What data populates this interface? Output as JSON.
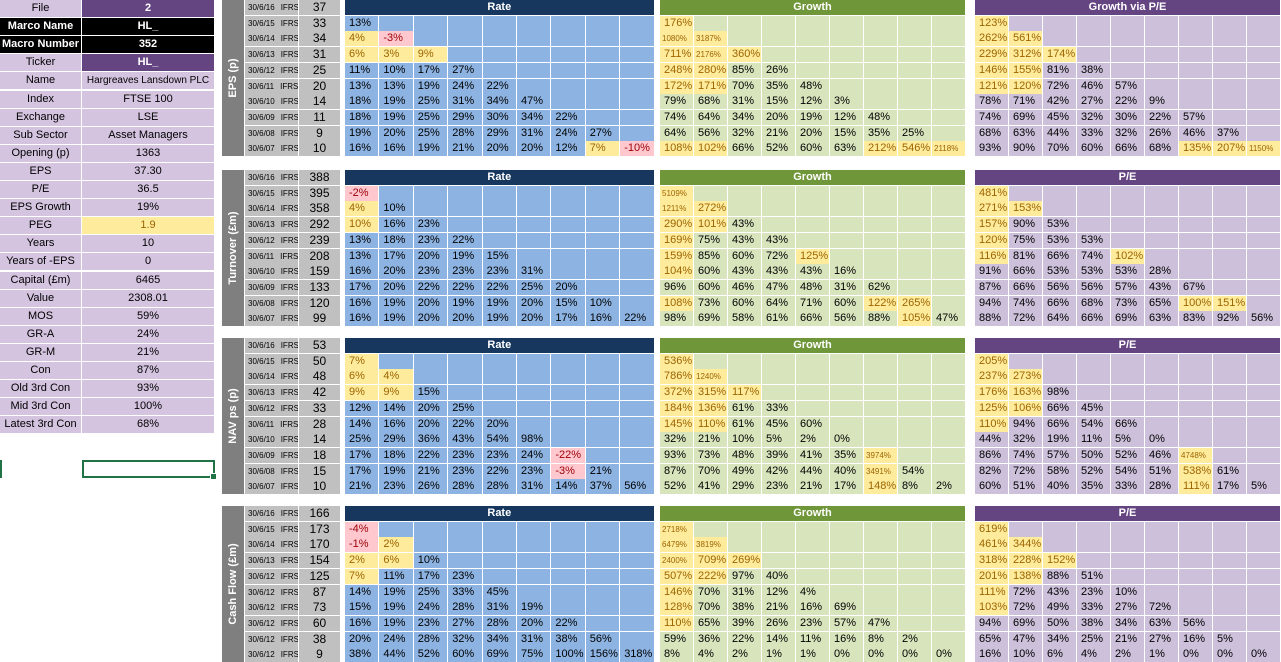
{
  "colors": {
    "rate_header": "#17375e",
    "rate_cell": "#8db3e2",
    "growth_header": "#6f9638",
    "growth_cell": "#d7e4bc",
    "pe_header": "#654482",
    "pe_cell": "#ccc0da",
    "highlight_yellow": "#ffeb9c",
    "highlight_pink": "#ffc7ce"
  },
  "summary": [
    {
      "label": "File",
      "value": "2"
    },
    {
      "label": "Marco Name",
      "value": "HL_"
    },
    {
      "label": "Macro Number",
      "value": "352"
    },
    {
      "label": "Ticker",
      "value": "HL_"
    },
    {
      "label": "Name",
      "value": "Hargreaves Lansdown PLC"
    },
    {
      "label": "Index",
      "value": "FTSE 100"
    },
    {
      "label": "Exchange",
      "value": "LSE"
    },
    {
      "label": "Sub Sector",
      "value": "Asset Managers"
    },
    {
      "label": "Opening (p)",
      "value": "1363"
    },
    {
      "label": "EPS",
      "value": "37.30"
    },
    {
      "label": "P/E",
      "value": "36.5"
    },
    {
      "label": "EPS Growth",
      "value": "19%"
    },
    {
      "label": "PEG",
      "value": "1.9"
    },
    {
      "label": "Years",
      "value": "10"
    },
    {
      "label": "Years of -EPS",
      "value": "0"
    },
    {
      "label": "Capital (£m)",
      "value": "6465"
    },
    {
      "label": "Value",
      "value": "2308.01"
    },
    {
      "label": "MOS",
      "value": "59%"
    },
    {
      "label": "GR-A",
      "value": "24%"
    },
    {
      "label": "GR-M",
      "value": "21%"
    },
    {
      "label": "Con",
      "value": "87%"
    },
    {
      "label": "Old 3rd Con",
      "value": "93%"
    },
    {
      "label": "Mid 3rd Con",
      "value": "100%"
    },
    {
      "label": "Latest 3rd Con",
      "value": "68%"
    }
  ],
  "standard": "IFRS",
  "sections": [
    {
      "label": "EPS (p)",
      "dates": [
        "30/6/16",
        "30/6/15",
        "30/6/14",
        "30/6/13",
        "30/6/12",
        "30/6/11",
        "30/6/10",
        "30/6/09",
        "30/6/08",
        "30/6/07"
      ],
      "values": [
        "37",
        "33",
        "34",
        "31",
        "25",
        "20",
        "14",
        "11",
        "9",
        "10"
      ],
      "grids": [
        {
          "kind": "rate",
          "title": "Rate",
          "extra_highlight": [],
          "rows": [
            [
              "13%"
            ],
            [
              "4%",
              "-3%"
            ],
            [
              "6%",
              "3%",
              "9%"
            ],
            [
              "11%",
              "10%",
              "17%",
              "27%"
            ],
            [
              "13%",
              "13%",
              "19%",
              "24%",
              "22%"
            ],
            [
              "18%",
              "19%",
              "25%",
              "31%",
              "34%",
              "47%"
            ],
            [
              "18%",
              "19%",
              "25%",
              "29%",
              "30%",
              "34%",
              "22%"
            ],
            [
              "19%",
              "20%",
              "25%",
              "28%",
              "29%",
              "31%",
              "24%",
              "27%"
            ],
            [
              "16%",
              "16%",
              "19%",
              "21%",
              "20%",
              "20%",
              "12%",
              "7%",
              "-10%"
            ]
          ]
        },
        {
          "kind": "growth",
          "title": "Growth",
          "extra_highlight": [],
          "rows": [
            [
              "176%"
            ],
            [
              "1080%",
              "3187%"
            ],
            [
              "711%",
              "2176%",
              "360%"
            ],
            [
              "248%",
              "280%",
              "85%",
              "26%"
            ],
            [
              "172%",
              "171%",
              "70%",
              "35%",
              "48%"
            ],
            [
              "79%",
              "68%",
              "31%",
              "15%",
              "12%",
              "3%"
            ],
            [
              "74%",
              "64%",
              "34%",
              "20%",
              "19%",
              "12%",
              "48%"
            ],
            [
              "64%",
              "56%",
              "32%",
              "21%",
              "20%",
              "15%",
              "35%",
              "25%"
            ],
            [
              "108%",
              "102%",
              "66%",
              "52%",
              "60%",
              "63%",
              "212%",
              "546%",
              "2118%"
            ]
          ]
        },
        {
          "kind": "pe",
          "title": "Growth via P/E",
          "extra_highlight": [],
          "rows": [
            [
              "123%"
            ],
            [
              "262%",
              "561%"
            ],
            [
              "229%",
              "312%",
              "174%"
            ],
            [
              "146%",
              "155%",
              "81%",
              "38%"
            ],
            [
              "121%",
              "120%",
              "72%",
              "46%",
              "57%"
            ],
            [
              "78%",
              "71%",
              "42%",
              "27%",
              "22%",
              "9%"
            ],
            [
              "74%",
              "69%",
              "45%",
              "32%",
              "30%",
              "22%",
              "57%"
            ],
            [
              "68%",
              "63%",
              "44%",
              "33%",
              "32%",
              "26%",
              "46%",
              "37%"
            ],
            [
              "93%",
              "90%",
              "70%",
              "60%",
              "66%",
              "68%",
              "135%",
              "207%",
              "1150%"
            ]
          ]
        }
      ]
    },
    {
      "label": "Turnover (£m)",
      "dates": [
        "30/6/16",
        "30/6/15",
        "30/6/14",
        "30/6/13",
        "30/6/12",
        "30/6/11",
        "30/6/10",
        "30/6/09",
        "30/6/08",
        "30/6/07"
      ],
      "values": [
        "388",
        "395",
        "358",
        "292",
        "239",
        "208",
        "159",
        "133",
        "120",
        "99"
      ],
      "grids": [
        {
          "kind": "rate",
          "title": "Rate",
          "extra_highlight": [
            "2,0"
          ],
          "rows": [
            [
              "-2%"
            ],
            [
              "4%",
              "10%"
            ],
            [
              "10%",
              "16%",
              "23%"
            ],
            [
              "13%",
              "18%",
              "23%",
              "22%"
            ],
            [
              "13%",
              "17%",
              "20%",
              "19%",
              "15%"
            ],
            [
              "16%",
              "20%",
              "23%",
              "23%",
              "23%",
              "31%"
            ],
            [
              "17%",
              "20%",
              "22%",
              "22%",
              "22%",
              "25%",
              "20%"
            ],
            [
              "16%",
              "19%",
              "20%",
              "19%",
              "19%",
              "20%",
              "15%",
              "10%"
            ],
            [
              "16%",
              "19%",
              "20%",
              "20%",
              "19%",
              "20%",
              "17%",
              "16%",
              "22%"
            ]
          ]
        },
        {
          "kind": "growth",
          "title": "Growth",
          "extra_highlight": [],
          "rows": [
            [
              "5109%"
            ],
            [
              "1211%",
              "272%"
            ],
            [
              "290%",
              "101%",
              "43%"
            ],
            [
              "169%",
              "75%",
              "43%",
              "43%"
            ],
            [
              "159%",
              "85%",
              "60%",
              "72%",
              "125%"
            ],
            [
              "104%",
              "60%",
              "43%",
              "43%",
              "43%",
              "16%"
            ],
            [
              "96%",
              "60%",
              "46%",
              "47%",
              "48%",
              "31%",
              "62%"
            ],
            [
              "108%",
              "73%",
              "60%",
              "64%",
              "71%",
              "60%",
              "122%",
              "265%"
            ],
            [
              "98%",
              "69%",
              "58%",
              "61%",
              "66%",
              "56%",
              "88%",
              "105%",
              "47%"
            ]
          ]
        },
        {
          "kind": "pe",
          "title": "P/E",
          "extra_highlight": [
            "7,6"
          ],
          "rows": [
            [
              "481%"
            ],
            [
              "271%",
              "153%"
            ],
            [
              "157%",
              "90%",
              "53%"
            ],
            [
              "120%",
              "75%",
              "53%",
              "53%"
            ],
            [
              "116%",
              "81%",
              "66%",
              "74%",
              "102%"
            ],
            [
              "91%",
              "66%",
              "53%",
              "53%",
              "53%",
              "28%"
            ],
            [
              "87%",
              "66%",
              "56%",
              "56%",
              "57%",
              "43%",
              "67%"
            ],
            [
              "94%",
              "74%",
              "66%",
              "68%",
              "73%",
              "65%",
              "100%",
              "151%"
            ],
            [
              "88%",
              "72%",
              "64%",
              "66%",
              "69%",
              "63%",
              "83%",
              "92%",
              "56%"
            ]
          ]
        }
      ]
    },
    {
      "label": "NAV ps (p)",
      "dates": [
        "30/6/16",
        "30/6/15",
        "30/6/14",
        "30/6/13",
        "30/6/12",
        "30/6/11",
        "30/6/10",
        "30/6/09",
        "30/6/08",
        "30/6/07"
      ],
      "values": [
        "53",
        "50",
        "48",
        "42",
        "33",
        "28",
        "14",
        "18",
        "15",
        "10"
      ],
      "grids": [
        {
          "kind": "rate",
          "title": "Rate",
          "extra_highlight": [],
          "rows": [
            [
              "7%"
            ],
            [
              "6%",
              "4%"
            ],
            [
              "9%",
              "9%",
              "15%"
            ],
            [
              "12%",
              "14%",
              "20%",
              "25%"
            ],
            [
              "14%",
              "16%",
              "20%",
              "22%",
              "20%"
            ],
            [
              "25%",
              "29%",
              "36%",
              "43%",
              "54%",
              "98%"
            ],
            [
              "17%",
              "18%",
              "22%",
              "23%",
              "23%",
              "24%",
              "-22%"
            ],
            [
              "17%",
              "19%",
              "21%",
              "23%",
              "22%",
              "23%",
              "-3%",
              "21%"
            ],
            [
              "21%",
              "23%",
              "26%",
              "28%",
              "28%",
              "31%",
              "14%",
              "37%",
              "56%"
            ]
          ]
        },
        {
          "kind": "growth",
          "title": "Growth",
          "extra_highlight": [],
          "rows": [
            [
              "536%"
            ],
            [
              "786%",
              "1240%"
            ],
            [
              "372%",
              "315%",
              "117%"
            ],
            [
              "184%",
              "136%",
              "61%",
              "33%"
            ],
            [
              "145%",
              "110%",
              "61%",
              "45%",
              "60%"
            ],
            [
              "32%",
              "21%",
              "10%",
              "5%",
              "2%",
              "0%"
            ],
            [
              "93%",
              "73%",
              "48%",
              "39%",
              "41%",
              "35%",
              "3974%"
            ],
            [
              "87%",
              "70%",
              "49%",
              "42%",
              "44%",
              "40%",
              "3491%",
              "54%"
            ],
            [
              "52%",
              "41%",
              "29%",
              "23%",
              "21%",
              "17%",
              "148%",
              "8%",
              "2%"
            ]
          ]
        },
        {
          "kind": "pe",
          "title": "P/E",
          "extra_highlight": [],
          "rows": [
            [
              "205%"
            ],
            [
              "237%",
              "273%"
            ],
            [
              "176%",
              "163%",
              "98%"
            ],
            [
              "125%",
              "106%",
              "66%",
              "45%"
            ],
            [
              "110%",
              "94%",
              "66%",
              "54%",
              "66%"
            ],
            [
              "44%",
              "32%",
              "19%",
              "11%",
              "5%",
              "0%"
            ],
            [
              "86%",
              "74%",
              "57%",
              "50%",
              "52%",
              "46%",
              "4748%"
            ],
            [
              "82%",
              "72%",
              "58%",
              "52%",
              "54%",
              "51%",
              "538%",
              "61%"
            ],
            [
              "60%",
              "51%",
              "40%",
              "35%",
              "33%",
              "28%",
              "111%",
              "17%",
              "5%"
            ]
          ]
        }
      ]
    },
    {
      "label": "Cash Flow (£m)",
      "dates": [
        "30/6/16",
        "30/6/15",
        "30/6/14",
        "30/6/13",
        "30/6/12",
        "30/6/12",
        "30/6/12",
        "30/6/12",
        "30/6/12",
        "30/6/12"
      ],
      "values": [
        "166",
        "173",
        "170",
        "154",
        "125",
        "87",
        "73",
        "60",
        "38",
        "9"
      ],
      "grids": [
        {
          "kind": "rate",
          "title": "Rate",
          "extra_highlight": [],
          "rows": [
            [
              "-4%"
            ],
            [
              "-1%",
              "2%"
            ],
            [
              "2%",
              "6%",
              "10%"
            ],
            [
              "7%",
              "11%",
              "17%",
              "23%"
            ],
            [
              "14%",
              "19%",
              "25%",
              "33%",
              "45%"
            ],
            [
              "15%",
              "19%",
              "24%",
              "28%",
              "31%",
              "19%"
            ],
            [
              "16%",
              "19%",
              "23%",
              "27%",
              "28%",
              "20%",
              "22%"
            ],
            [
              "20%",
              "24%",
              "28%",
              "32%",
              "34%",
              "31%",
              "38%",
              "56%"
            ],
            [
              "38%",
              "44%",
              "52%",
              "60%",
              "69%",
              "75%",
              "100%",
              "156%",
              "318%"
            ]
          ]
        },
        {
          "kind": "growth",
          "title": "Growth",
          "extra_highlight": [],
          "rows": [
            [
              "2718%"
            ],
            [
              "6479%",
              "3819%"
            ],
            [
              "2400%",
              "709%",
              "269%"
            ],
            [
              "507%",
              "222%",
              "97%",
              "40%"
            ],
            [
              "146%",
              "70%",
              "31%",
              "12%",
              "4%"
            ],
            [
              "128%",
              "70%",
              "38%",
              "21%",
              "16%",
              "69%"
            ],
            [
              "110%",
              "65%",
              "39%",
              "26%",
              "23%",
              "57%",
              "47%"
            ],
            [
              "59%",
              "36%",
              "22%",
              "14%",
              "11%",
              "16%",
              "8%",
              "2%"
            ],
            [
              "8%",
              "4%",
              "2%",
              "1%",
              "1%",
              "0%",
              "0%",
              "0%",
              "0%"
            ]
          ]
        },
        {
          "kind": "pe",
          "title": "P/E",
          "extra_highlight": [],
          "rows": [
            [
              "619%"
            ],
            [
              "461%",
              "344%"
            ],
            [
              "318%",
              "228%",
              "152%"
            ],
            [
              "201%",
              "138%",
              "88%",
              "51%"
            ],
            [
              "111%",
              "72%",
              "43%",
              "23%",
              "10%"
            ],
            [
              "103%",
              "72%",
              "49%",
              "33%",
              "27%",
              "72%"
            ],
            [
              "94%",
              "69%",
              "50%",
              "38%",
              "34%",
              "63%",
              "56%"
            ],
            [
              "65%",
              "47%",
              "34%",
              "25%",
              "21%",
              "27%",
              "16%",
              "5%"
            ],
            [
              "16%",
              "10%",
              "6%",
              "4%",
              "2%",
              "1%",
              "0%",
              "0%",
              "0%"
            ]
          ]
        }
      ]
    }
  ]
}
